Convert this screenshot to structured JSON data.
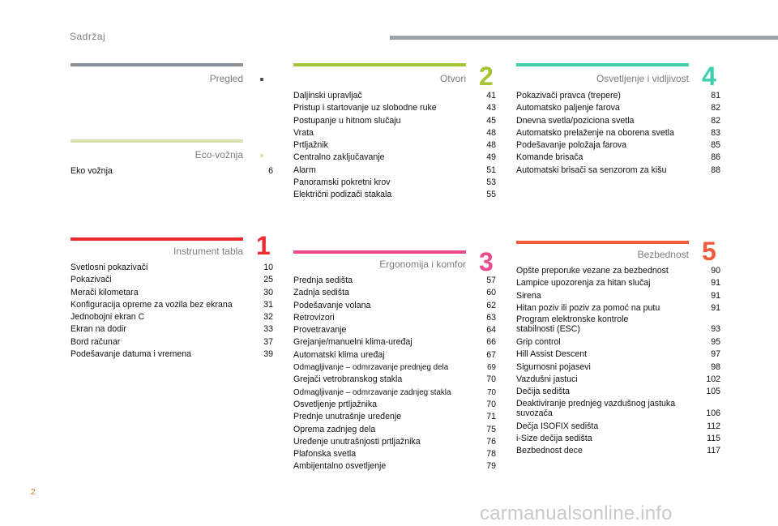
{
  "header": {
    "title": "Sadržaj"
  },
  "page_number": "2",
  "watermark": "carmanualsonline.info",
  "colors": {
    "pregled": "#8a9198",
    "eco": "#d9e3b0",
    "instrument": "#ef2b2f",
    "otvori": "#a5c535",
    "ergonomija": "#ec4a8c",
    "osvetljenje": "#3fcfb0",
    "bezbednost": "#f15a3b"
  },
  "sections": {
    "pregled": {
      "title": "Pregled",
      "number": "",
      "entries": []
    },
    "eco": {
      "title": "Eco-vožnja",
      "number": "",
      "entries": [
        {
          "title": "Eko vožnja",
          "page": "6"
        }
      ]
    },
    "instrument": {
      "title": "Instrument tabla",
      "number": "1",
      "entries": [
        {
          "title": "Svetlosni pokazivači",
          "page": "10"
        },
        {
          "title": "Pokazivači",
          "page": "25"
        },
        {
          "title": "Merači kilometara",
          "page": "30"
        },
        {
          "title": "Konfiguracija opreme za vozila bez ekrana",
          "page": "31"
        },
        {
          "title": "Jednobojni ekran C",
          "page": "32"
        },
        {
          "title": "Ekran na dodir",
          "page": "33"
        },
        {
          "title": "Bord računar",
          "page": "37"
        },
        {
          "title": "Podešavanje datuma i vremena",
          "page": "39"
        }
      ]
    },
    "otvori": {
      "title": "Otvori",
      "number": "2",
      "entries": [
        {
          "title": "Daljinski upravljač",
          "page": "41"
        },
        {
          "title": "Pristup i startovanje uz slobodne ruke",
          "page": "43"
        },
        {
          "title": "Postupanje u hitnom slučaju",
          "page": "45"
        },
        {
          "title": "Vrata",
          "page": "48"
        },
        {
          "title": "Prtljažnik",
          "page": "48"
        },
        {
          "title": "Centralno zaključavanje",
          "page": "49"
        },
        {
          "title": "Alarm",
          "page": "51"
        },
        {
          "title": "Panoramski pokretni krov",
          "page": "53"
        },
        {
          "title": "Električni podizači stakala",
          "page": "55"
        }
      ]
    },
    "ergonomija": {
      "title": "Ergonomija i komfor",
      "number": "3",
      "entries": [
        {
          "title": "Prednja sedišta",
          "page": "57"
        },
        {
          "title": "Zadnja sedišta",
          "page": "60"
        },
        {
          "title": "Podešavanje volana",
          "page": "62"
        },
        {
          "title": "Retrovizori",
          "page": "63"
        },
        {
          "title": "Provetravanje",
          "page": "64"
        },
        {
          "title": "Grejanje/manuelni klima-uređaj",
          "page": "66"
        },
        {
          "title": "Automatski klima uređaj",
          "page": "67"
        },
        {
          "title": "Odmagljivanje – odmrzavanje prednjeg dela",
          "page": "69"
        },
        {
          "title": "Grejači vetrobranskog stakla",
          "page": "70"
        },
        {
          "title": "Odmagljivanje – odmrzavanje zadnjeg stakla",
          "page": "70"
        },
        {
          "title": "Osvetljenje prtljažnika",
          "page": "70"
        },
        {
          "title": "Prednje unutrašnje uređenje",
          "page": "71"
        },
        {
          "title": "Oprema zadnjeg dela",
          "page": "75"
        },
        {
          "title": "Uređenje unutrašnjosti prtljažnika",
          "page": "76"
        },
        {
          "title": "Plafonska svetla",
          "page": "78"
        },
        {
          "title": "Ambijentalno osvetljenje",
          "page": "79"
        }
      ]
    },
    "osvetljenje": {
      "title": "Osvetljenje i vidljivost",
      "number": "4",
      "entries": [
        {
          "title": "Pokazivači pravca (trepere)",
          "page": "81"
        },
        {
          "title": "Automatsko paljenje farova",
          "page": "82"
        },
        {
          "title": "Dnevna svetla/poziciona svetla",
          "page": "82"
        },
        {
          "title": "Automatsko prelaženje na oborena svetla",
          "page": "83"
        },
        {
          "title": "Podešavanje položaja farova",
          "page": "85"
        },
        {
          "title": "Komande brisača",
          "page": "86"
        },
        {
          "title": "Automatski brisači sa senzorom za kišu",
          "page": "88"
        }
      ]
    },
    "bezbednost": {
      "title": "Bezbednost",
      "number": "5",
      "entries": [
        {
          "title": "Opšte preporuke vezane za bezbednost",
          "page": "90"
        },
        {
          "title": "Lampice upozorenja za hitan slučaj",
          "page": "91"
        },
        {
          "title": "Sirena",
          "page": "91"
        },
        {
          "title": "Hitan poziv ili poziv za pomoć na putu",
          "page": "91"
        },
        {
          "title": "Program elektronske kontrole\nstabilnosti (ESC)",
          "page": "93"
        },
        {
          "title": "Grip control",
          "page": "95"
        },
        {
          "title": "Hill Assist Descent",
          "page": "97"
        },
        {
          "title": "Sigurnosni pojasevi",
          "page": "98"
        },
        {
          "title": "Vazdušni jastuci",
          "page": "102"
        },
        {
          "title": "Dečija sedišta",
          "page": "105"
        },
        {
          "title": "Deaktiviranje prednjeg vazdušnog jastuka\nsuvozača",
          "page": "106"
        },
        {
          "title": "Dečja ISOFIX sedišta",
          "page": "112"
        },
        {
          "title": "i-Size dečija sedišta",
          "page": "115"
        },
        {
          "title": "Bezbednost dece",
          "page": "117"
        }
      ]
    }
  }
}
